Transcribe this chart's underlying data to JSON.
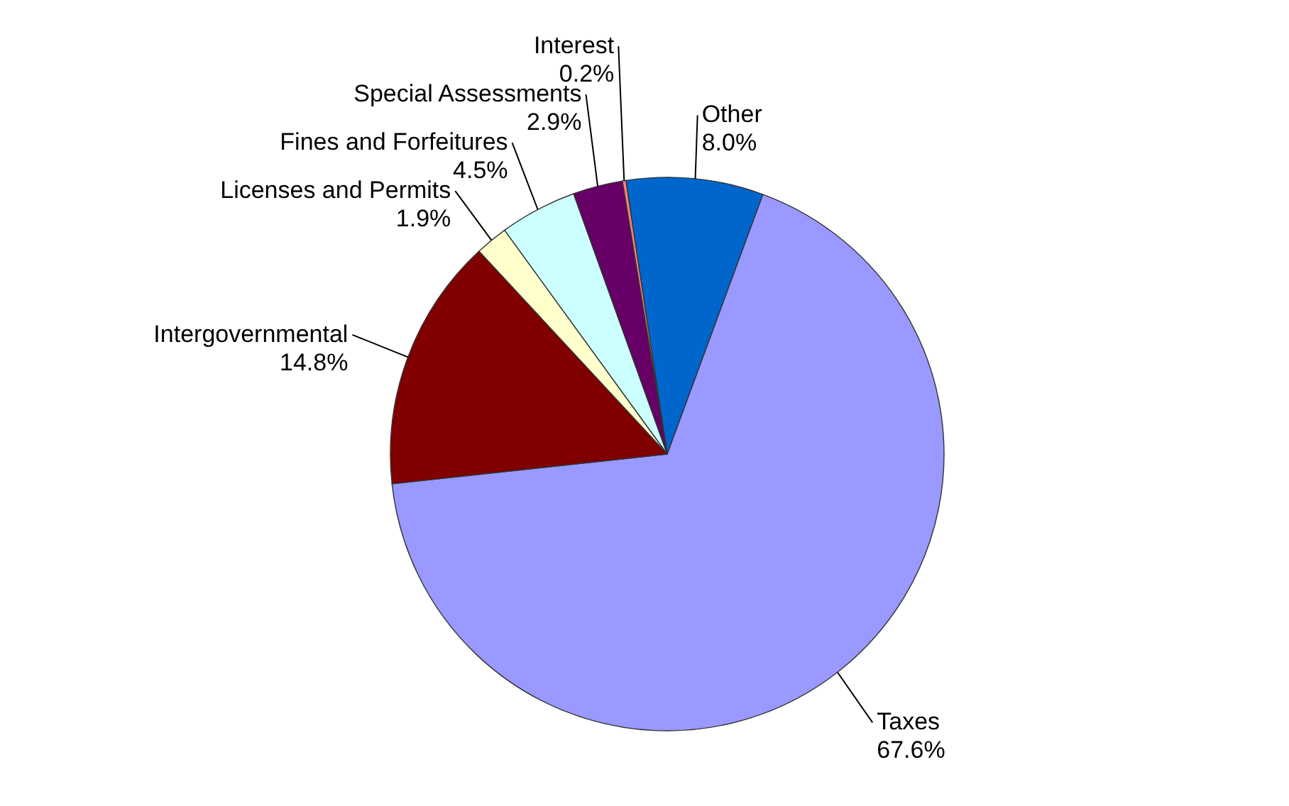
{
  "chart_data": {
    "type": "pie",
    "categories": [
      "Other",
      "Taxes",
      "Intergovernmental",
      "Licenses and Permits",
      "Fines and Forfeitures",
      "Special Assessments",
      "Interest"
    ],
    "values": [
      8.0,
      67.6,
      14.8,
      1.9,
      4.5,
      2.9,
      0.2
    ],
    "value_labels": [
      "8.0%",
      "67.6%",
      "14.8%",
      "1.9%",
      "4.5%",
      "2.9%",
      "0.2%"
    ],
    "colors": [
      "#0066cc",
      "#9999ff",
      "#800000",
      "#ffffcc",
      "#ccffff",
      "#660066",
      "#ff8080"
    ]
  }
}
